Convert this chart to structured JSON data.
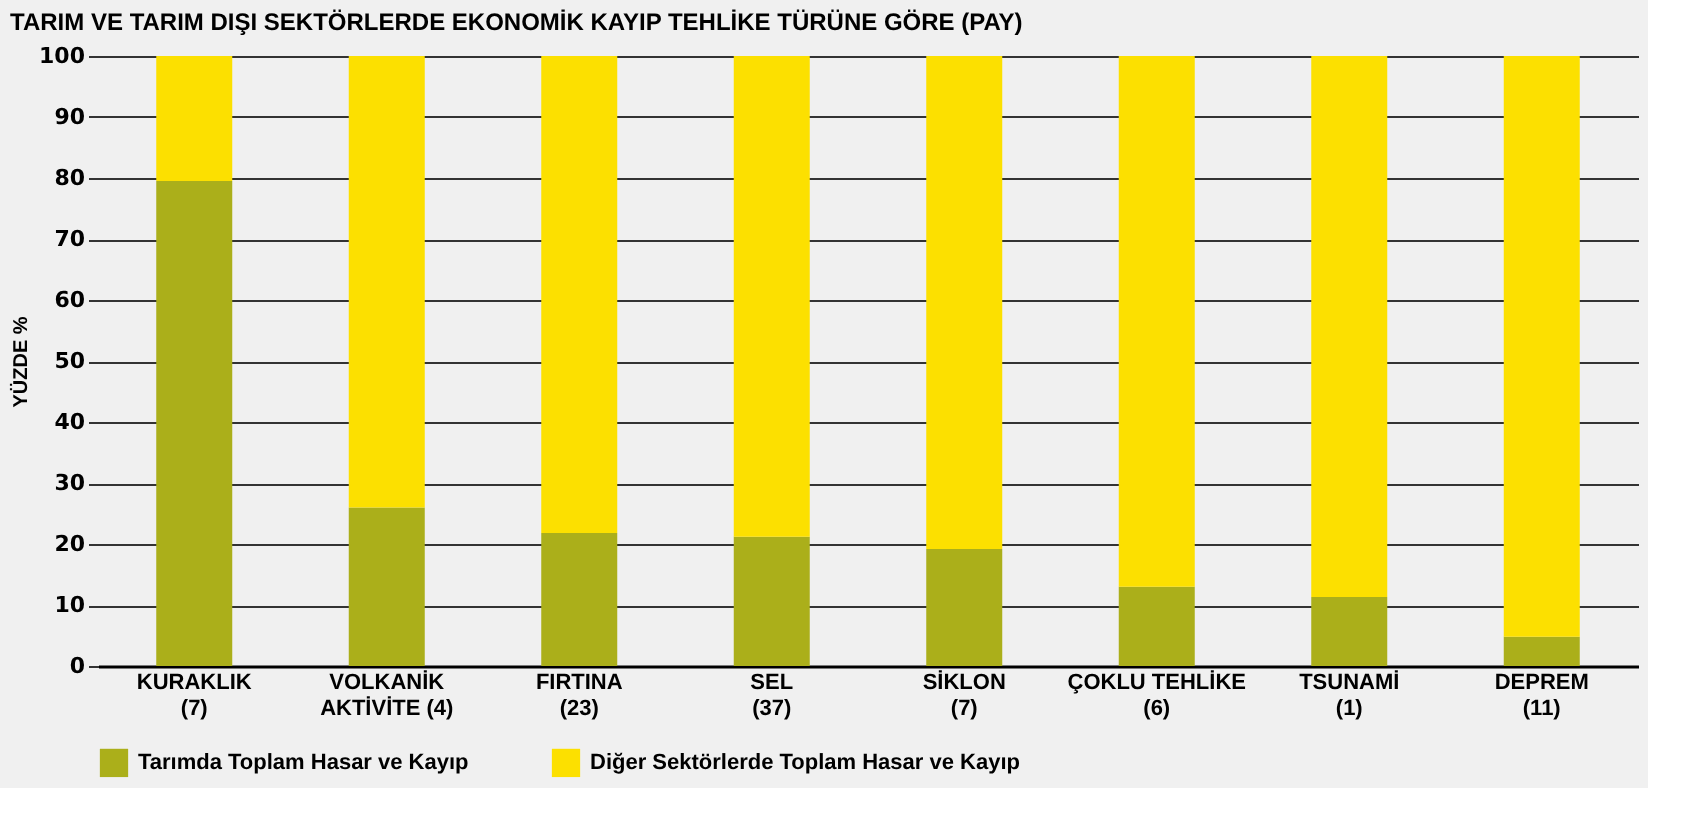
{
  "chart_data": {
    "type": "bar",
    "title": "TARIM VE TARIM DIŞI SEKTÖRLERDE EKONOMİK KAYIP TEHLİKE TÜRÜNE GÖRE (PAY)",
    "ylabel": "YÜZDE %",
    "categories": [
      "KURAKLIK\n(7)",
      "VOLKANİK\nAKTİVİTE (4)",
      "FIRTINA\n(23)",
      "SEL\n(37)",
      "SİKLON\n(7)",
      "ÇOKLU TEHLİKE\n(6)",
      "TSUNAMİ\n(1)",
      "DEPREM\n(11)"
    ],
    "stacked": true,
    "series": [
      {
        "name": "Tarımda Toplam Hasar ve Kayıp",
        "color": "#abaf1a",
        "values": [
          79.5,
          26,
          21.8,
          21.2,
          19.2,
          13,
          11.3,
          4.8
        ]
      },
      {
        "name": "Diğer Sektörlerde Toplam Hasar ve Kayıp",
        "color": "#fce000",
        "values": [
          20.5,
          74,
          78.2,
          78.8,
          80.8,
          87,
          88.7,
          95.2
        ]
      }
    ],
    "ylim": [
      0,
      100
    ],
    "yticks": [
      0,
      10,
      20,
      30,
      40,
      50,
      60,
      70,
      80,
      90,
      100
    ],
    "grid": "y",
    "legend": "bottom left"
  }
}
